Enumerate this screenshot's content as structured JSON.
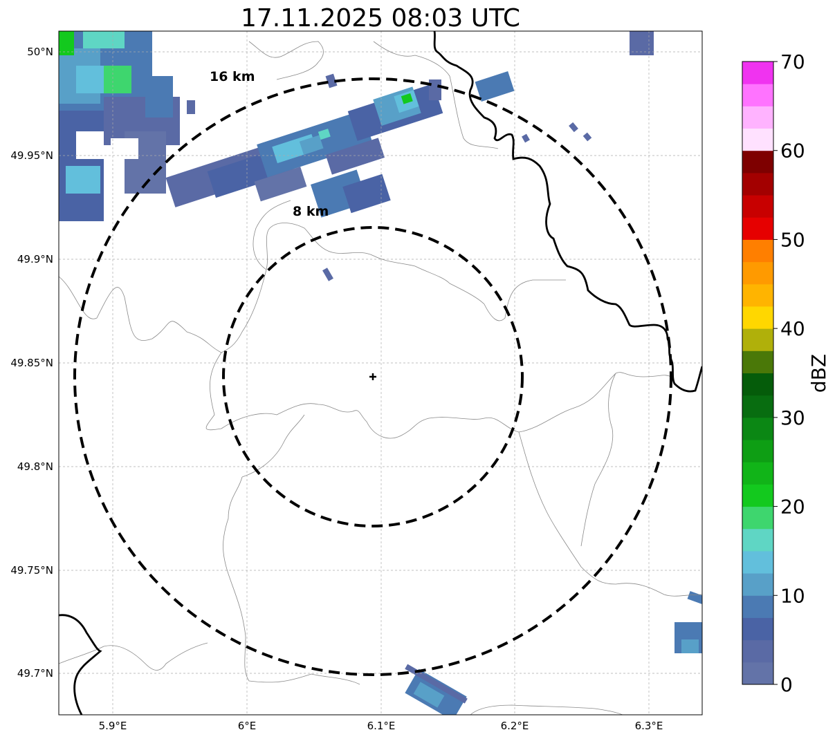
{
  "title": "17.11.2025 08:03 UTC",
  "map": {
    "lon_range": [
      5.86,
      6.34
    ],
    "lat_range": [
      49.68,
      50.01
    ],
    "lon_ticks": [
      {
        "value": 5.9,
        "label": "5.9°E"
      },
      {
        "value": 6.0,
        "label": "6°E"
      },
      {
        "value": 6.1,
        "label": "6.1°E"
      },
      {
        "value": 6.2,
        "label": "6.2°E"
      },
      {
        "value": 6.3,
        "label": "6.3°E"
      }
    ],
    "lat_ticks": [
      {
        "value": 50.0,
        "label": "50°N"
      },
      {
        "value": 49.95,
        "label": "49.95°N"
      },
      {
        "value": 49.9,
        "label": "49.9°N"
      },
      {
        "value": 49.85,
        "label": "49.85°N"
      },
      {
        "value": 49.8,
        "label": "49.8°N"
      },
      {
        "value": 49.75,
        "label": "49.75°N"
      },
      {
        "value": 49.7,
        "label": "49.7°N"
      }
    ],
    "gridlines": true,
    "radar_site": {
      "lon": 6.095,
      "lat": 49.843
    },
    "range_rings": [
      {
        "label": "8 km",
        "radius_km": 8
      },
      {
        "label": "16 km",
        "radius_km": 16
      }
    ],
    "range_ring_style": "dashed black",
    "border_color": "#000000",
    "admin_line_color": "#888888"
  },
  "colorbar": {
    "label": "dBZ",
    "min": 0,
    "max": 70,
    "ticks": [
      "0",
      "10",
      "20",
      "30",
      "40",
      "50",
      "60",
      "70"
    ],
    "colors": [
      "#6373a8",
      "#5a6aa5",
      "#4a63a5",
      "#4b7ab3",
      "#58a0c8",
      "#62bfdc",
      "#5fd6c4",
      "#3ed66e",
      "#13c91e",
      "#11b418",
      "#0e9e14",
      "#0b8714",
      "#086d10",
      "#055c0a",
      "#4a7808",
      "#b0b00a",
      "#ffd700",
      "#ffb400",
      "#ff9a00",
      "#ff7f00",
      "#e60000",
      "#c80000",
      "#a30000",
      "#7e0000",
      "#ffe1ff",
      "#ffb3ff",
      "#ff73ff",
      "#f033f0"
    ]
  }
}
